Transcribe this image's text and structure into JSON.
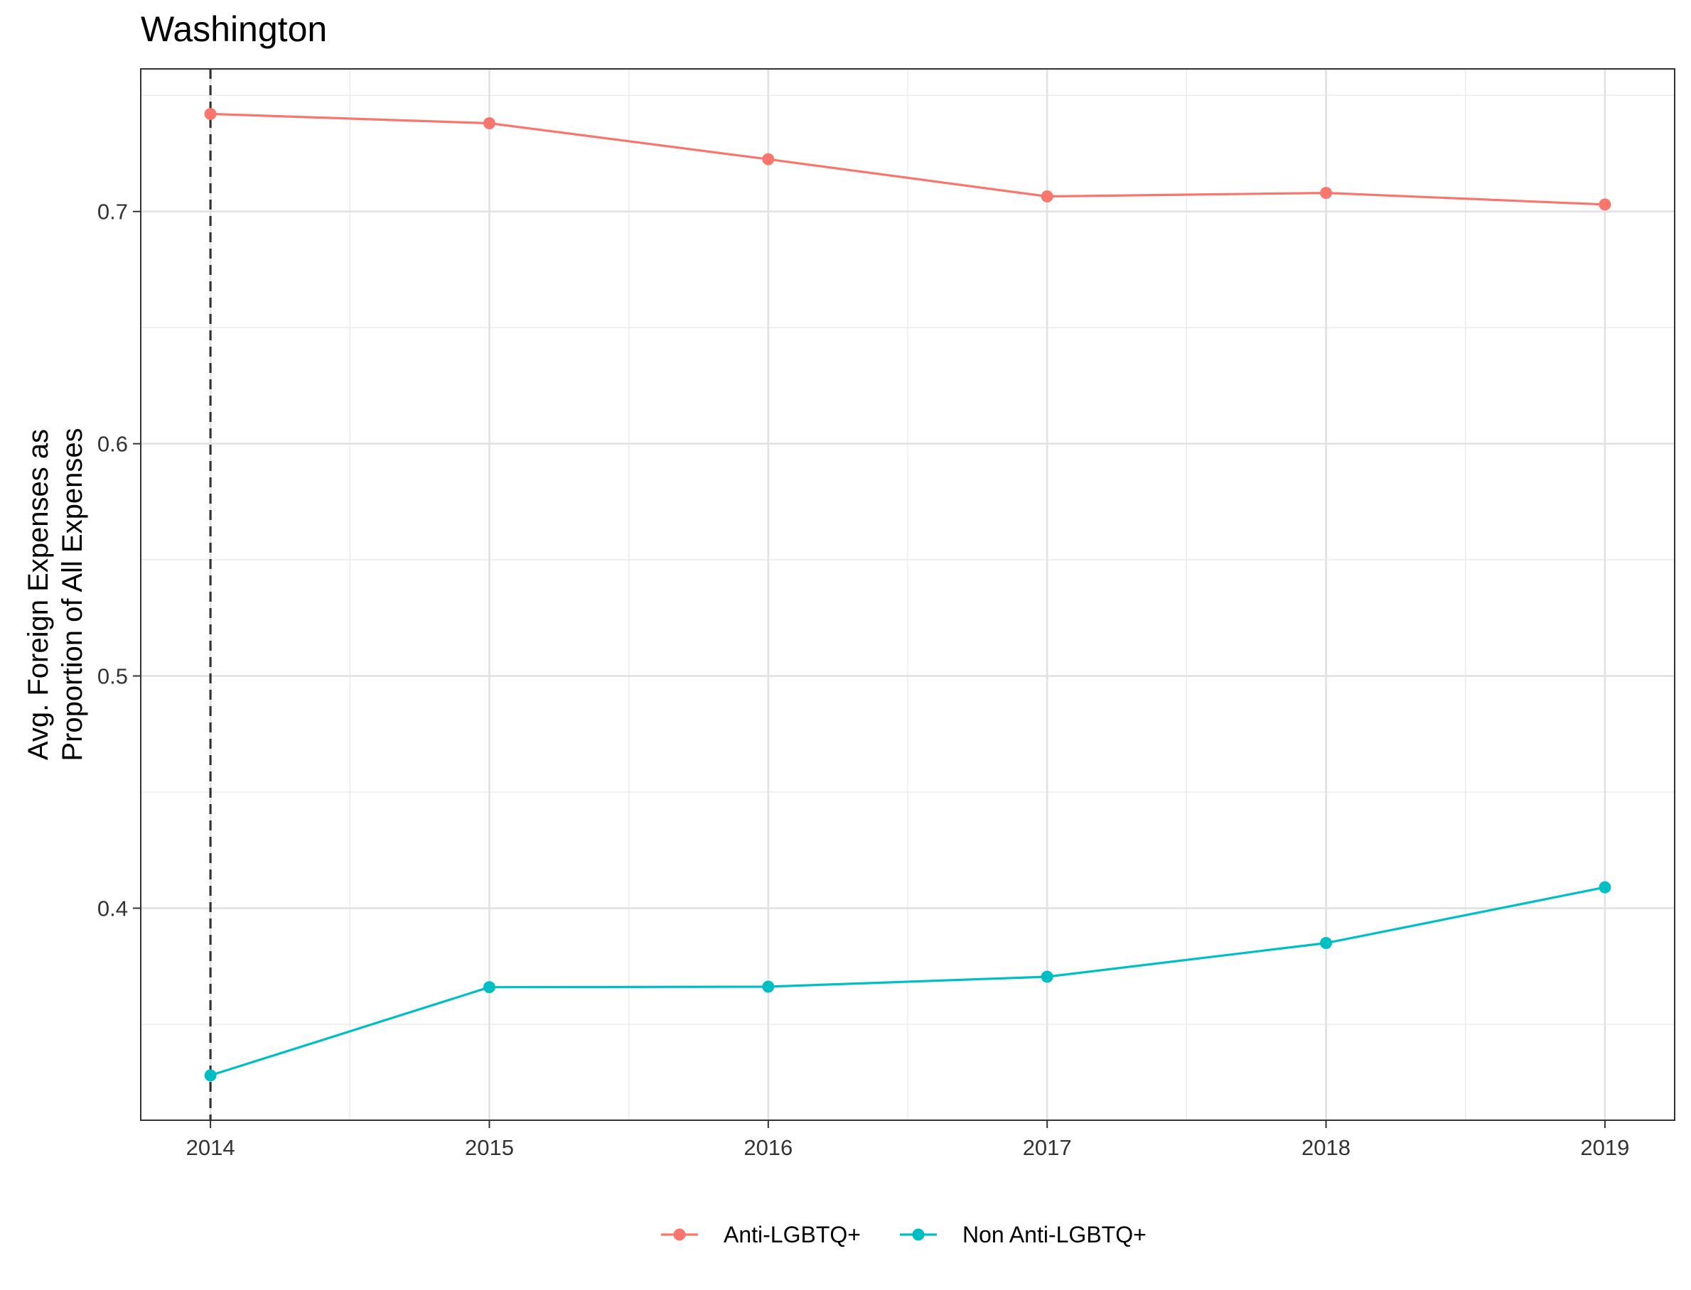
{
  "chart_data": {
    "type": "line",
    "title": "Washington",
    "xlabel": "",
    "ylabel": "Avg. Foreign Expenses as Proportion of All Expenses",
    "ylabel_lines": [
      "Avg. Foreign Expenses as",
      "Proportion of All Expenses"
    ],
    "x": [
      2014,
      2015,
      2016,
      2017,
      2018,
      2019
    ],
    "x_tick_labels": [
      "2014",
      "2015",
      "2016",
      "2017",
      "2018",
      "2019"
    ],
    "y_tick_values": [
      0.4,
      0.5,
      0.6,
      0.7
    ],
    "y_tick_labels": [
      "0.4",
      "0.5",
      "0.6",
      "0.7"
    ],
    "xlim": [
      2013.75,
      2019.25
    ],
    "ylim": [
      0.3087,
      0.7614
    ],
    "vline_x": 2014,
    "grid": true,
    "legend_position": "bottom",
    "series": [
      {
        "name": "Anti-LGBTQ+",
        "color": "#F8766D",
        "values": [
          0.742,
          0.738,
          0.7225,
          0.7065,
          0.708,
          0.703
        ]
      },
      {
        "name": "Non Anti-LGBTQ+",
        "color": "#00BFC4",
        "values": [
          0.328,
          0.366,
          0.3662,
          0.3705,
          0.385,
          0.409
        ]
      }
    ]
  }
}
